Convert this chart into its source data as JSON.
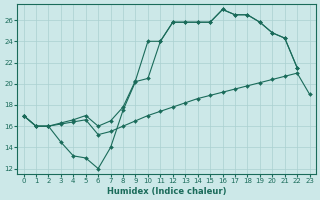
{
  "xlabel": "Humidex (Indice chaleur)",
  "bg_color": "#cce8e8",
  "grid_color": "#aad0d0",
  "line_color": "#1a6b5a",
  "xlim": [
    -0.5,
    23.5
  ],
  "ylim": [
    11.5,
    27.5
  ],
  "yticks": [
    12,
    14,
    16,
    18,
    20,
    22,
    24,
    26
  ],
  "xticks": [
    0,
    1,
    2,
    3,
    4,
    5,
    6,
    7,
    8,
    9,
    10,
    11,
    12,
    13,
    14,
    15,
    16,
    17,
    18,
    19,
    20,
    21,
    22,
    23
  ],
  "line1_x": [
    0,
    1,
    2,
    3,
    4,
    5,
    6,
    7,
    8,
    9,
    10,
    11,
    12,
    13,
    14,
    15,
    16,
    17,
    18,
    19,
    20,
    21,
    22,
    23
  ],
  "line1_y": [
    17.0,
    16.0,
    16.0,
    16.2,
    16.4,
    16.6,
    15.2,
    15.5,
    16.0,
    16.5,
    17.0,
    17.4,
    17.8,
    18.2,
    18.6,
    18.9,
    19.2,
    19.5,
    19.8,
    20.1,
    20.4,
    20.7,
    21.0,
    19.0
  ],
  "line2_x": [
    0,
    1,
    2,
    3,
    4,
    5,
    6,
    7,
    8,
    9,
    10,
    11,
    12,
    13,
    14,
    15,
    16,
    17,
    18,
    19,
    20,
    21,
    22
  ],
  "line2_y": [
    17.0,
    16.0,
    16.0,
    14.5,
    13.2,
    13.0,
    12.0,
    14.0,
    17.5,
    20.2,
    20.5,
    24.0,
    25.8,
    25.8,
    25.8,
    25.8,
    27.0,
    26.5,
    26.5,
    25.8,
    24.8,
    24.3,
    21.5
  ],
  "line3_x": [
    0,
    1,
    2,
    3,
    4,
    5,
    6,
    7,
    8,
    9,
    10,
    11,
    12,
    13,
    14,
    15,
    16,
    17,
    18,
    19,
    20,
    21,
    22
  ],
  "line3_y": [
    17.0,
    16.0,
    16.0,
    16.3,
    16.6,
    17.0,
    16.0,
    16.5,
    17.8,
    20.3,
    24.0,
    24.0,
    25.8,
    25.8,
    25.8,
    25.8,
    27.0,
    26.5,
    26.5,
    25.8,
    24.8,
    24.3,
    21.5
  ]
}
